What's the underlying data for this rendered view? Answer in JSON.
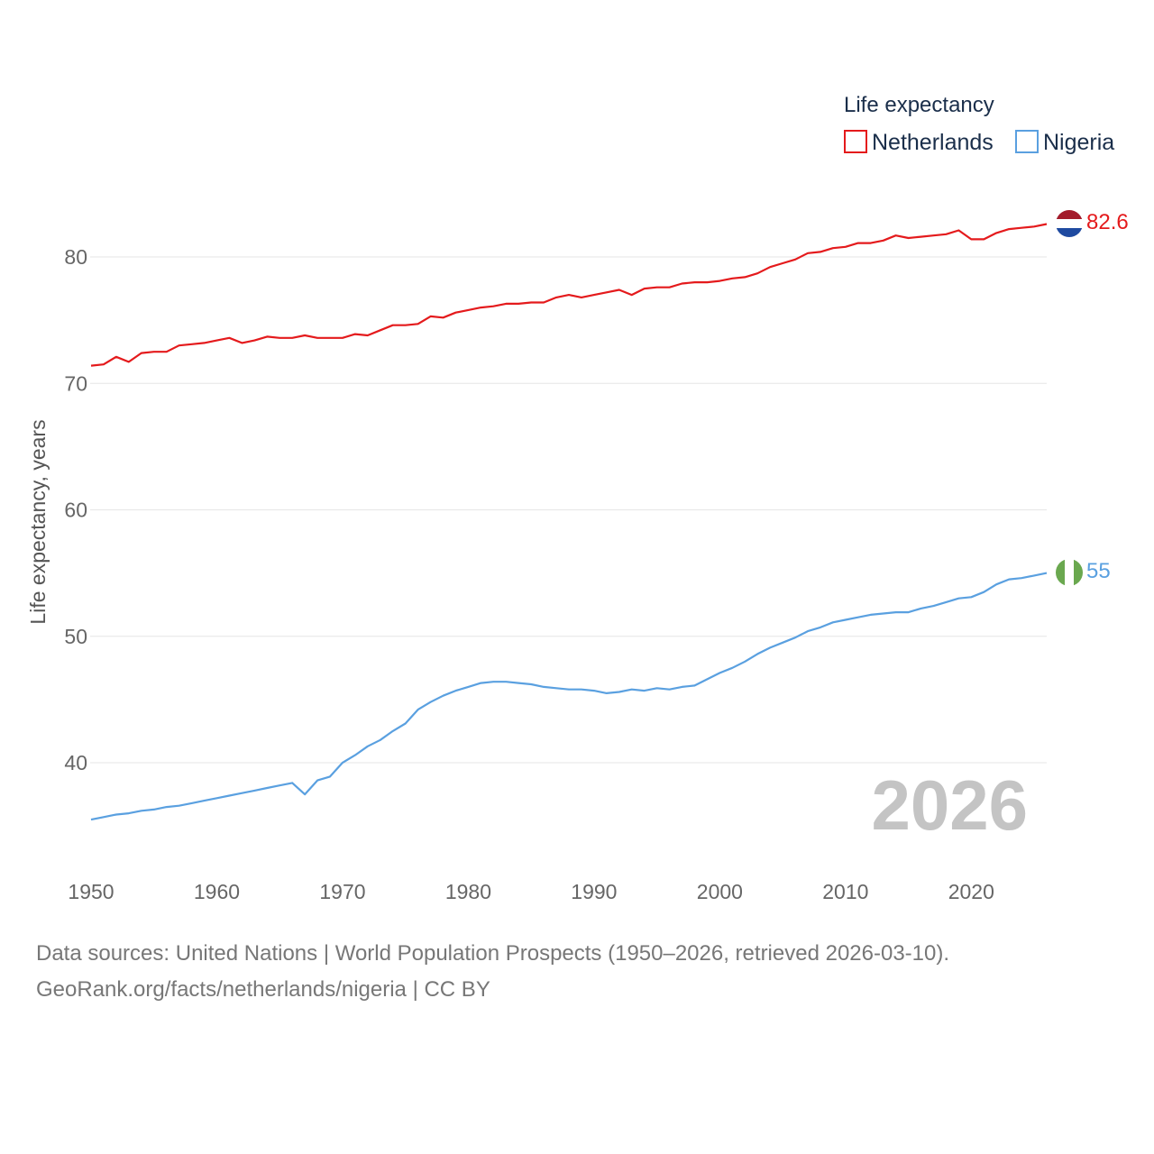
{
  "chart_data": {
    "type": "line",
    "ylabel": "Life expectancy, years",
    "xlabel": "",
    "xlim": [
      1950,
      2026
    ],
    "ylim": [
      35,
      85
    ],
    "x_ticks": [
      1950,
      1960,
      1970,
      1980,
      1990,
      2000,
      2010,
      2020
    ],
    "y_ticks": [
      40,
      50,
      60,
      70,
      80
    ],
    "grid": true,
    "legend": {
      "title": "Life expectancy",
      "position": "top-right"
    },
    "year_label": "2026",
    "x": [
      1950,
      1951,
      1952,
      1953,
      1954,
      1955,
      1956,
      1957,
      1958,
      1959,
      1960,
      1961,
      1962,
      1963,
      1964,
      1965,
      1966,
      1967,
      1968,
      1969,
      1970,
      1971,
      1972,
      1973,
      1974,
      1975,
      1976,
      1977,
      1978,
      1979,
      1980,
      1981,
      1982,
      1983,
      1984,
      1985,
      1986,
      1987,
      1988,
      1989,
      1990,
      1991,
      1992,
      1993,
      1994,
      1995,
      1996,
      1997,
      1998,
      1999,
      2000,
      2001,
      2002,
      2003,
      2004,
      2005,
      2006,
      2007,
      2008,
      2009,
      2010,
      2011,
      2012,
      2013,
      2014,
      2015,
      2016,
      2017,
      2018,
      2019,
      2020,
      2021,
      2022,
      2023,
      2024,
      2025,
      2026
    ],
    "series": [
      {
        "name": "Netherlands",
        "color": "#e41a1c",
        "end_label": "82.6",
        "flag": "netherlands-flag",
        "values": [
          71.4,
          71.5,
          72.1,
          71.7,
          72.4,
          72.5,
          72.5,
          73.0,
          73.1,
          73.2,
          73.4,
          73.6,
          73.2,
          73.4,
          73.7,
          73.6,
          73.6,
          73.8,
          73.6,
          73.6,
          73.6,
          73.9,
          73.8,
          74.2,
          74.6,
          74.6,
          74.7,
          75.3,
          75.2,
          75.6,
          75.8,
          76.0,
          76.1,
          76.3,
          76.3,
          76.4,
          76.4,
          76.8,
          77.0,
          76.8,
          77.0,
          77.2,
          77.4,
          77.0,
          77.5,
          77.6,
          77.6,
          77.9,
          78.0,
          78.0,
          78.1,
          78.3,
          78.4,
          78.7,
          79.2,
          79.5,
          79.8,
          80.3,
          80.4,
          80.7,
          80.8,
          81.1,
          81.1,
          81.3,
          81.7,
          81.5,
          81.6,
          81.7,
          81.8,
          82.1,
          81.4,
          81.4,
          81.9,
          82.2,
          82.3,
          82.4,
          82.6
        ]
      },
      {
        "name": "Nigeria",
        "color": "#5aa0e0",
        "end_label": "55",
        "flag": "nigeria-flag",
        "values": [
          35.5,
          35.7,
          35.9,
          36.0,
          36.2,
          36.3,
          36.5,
          36.6,
          36.8,
          37.0,
          37.2,
          37.4,
          37.6,
          37.8,
          38.0,
          38.2,
          38.4,
          37.5,
          38.6,
          38.9,
          40.0,
          40.6,
          41.3,
          41.8,
          42.5,
          43.1,
          44.2,
          44.8,
          45.3,
          45.7,
          46.0,
          46.3,
          46.4,
          46.4,
          46.3,
          46.2,
          46.0,
          45.9,
          45.8,
          45.8,
          45.7,
          45.5,
          45.6,
          45.8,
          45.7,
          45.9,
          45.8,
          46.0,
          46.1,
          46.6,
          47.1,
          47.5,
          48.0,
          48.6,
          49.1,
          49.5,
          49.9,
          50.4,
          50.7,
          51.1,
          51.3,
          51.5,
          51.7,
          51.8,
          51.9,
          51.9,
          52.2,
          52.4,
          52.7,
          53.0,
          53.1,
          53.5,
          54.1,
          54.5,
          54.6,
          54.8,
          55.0
        ]
      }
    ]
  },
  "footer": {
    "sources": "Data sources: United Nations | World Population Prospects (1950–2026, retrieved 2026-03-10).",
    "credit": "GeoRank.org/facts/netherlands/nigeria | CC BY"
  }
}
